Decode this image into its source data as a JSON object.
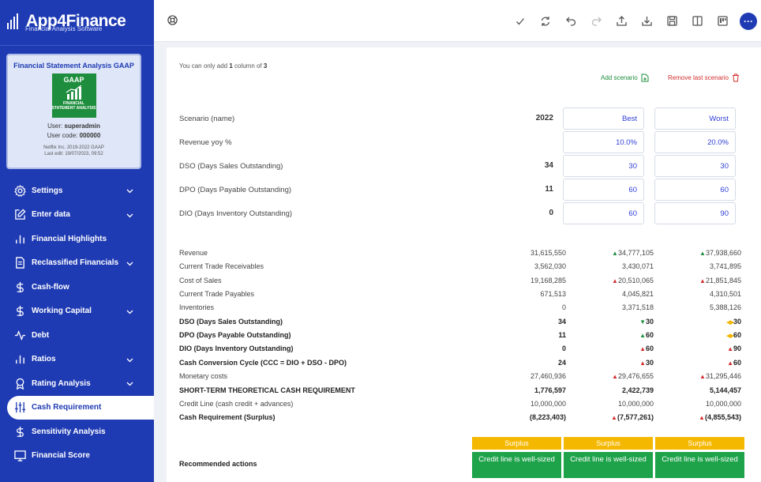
{
  "app": {
    "name": "App4Finance",
    "subtitle": "Financial Analysis Software"
  },
  "project_card": {
    "title": "Financial Statement Analysis GAAP",
    "badge_top": "GAAP",
    "badge_bottom": "FINANCIAL STATEMENT ANALYSIS",
    "user_label": "User:",
    "user": "superadmin",
    "user_code_label": "User code:",
    "user_code": "000000",
    "company": "Netflix Inc. 2019-2022 GAAP",
    "last_edit": "Last edit: 19/07/2023, 09:52"
  },
  "sidebar": {
    "items": [
      {
        "label": "Settings",
        "icon": "gear-icon",
        "has_chevron": true
      },
      {
        "label": "Enter data",
        "icon": "edit-icon",
        "has_chevron": true
      },
      {
        "label": "Financial Highlights",
        "icon": "bar-chart-icon",
        "has_chevron": false
      },
      {
        "label": "Reclassified Financials",
        "icon": "document-icon",
        "has_chevron": true
      },
      {
        "label": "Cash-flow",
        "icon": "dollar-icon",
        "has_chevron": false
      },
      {
        "label": "Working Capital",
        "icon": "dollar-icon",
        "has_chevron": true
      },
      {
        "label": "Debt",
        "icon": "pulse-icon",
        "has_chevron": false
      },
      {
        "label": "Ratios",
        "icon": "bar-chart-icon",
        "has_chevron": true
      },
      {
        "label": "Rating Analysis",
        "icon": "award-icon",
        "has_chevron": true
      },
      {
        "label": "Cash Requirement",
        "icon": "sliders-icon",
        "has_chevron": false,
        "active": true
      },
      {
        "label": "Sensitivity Analysis",
        "icon": "dollar-icon",
        "has_chevron": false
      },
      {
        "label": "Financial Score",
        "icon": "monitor-icon",
        "has_chevron": false
      }
    ]
  },
  "toolbar": {
    "icons": [
      "check-icon",
      "refresh-icon",
      "undo-icon",
      "redo-icon",
      "upload-icon",
      "download-icon",
      "save-icon",
      "columns-icon",
      "kanban-icon"
    ],
    "more": "···"
  },
  "main": {
    "note_prefix": "You can only add ",
    "note_count": "1",
    "note_mid": " column of ",
    "note_total": "3",
    "add_scenario": "Add scenario",
    "remove_scenario": "Remove last scenario",
    "inputs": [
      {
        "label": "Scenario (name)",
        "base": "2022",
        "best": "Best",
        "worst": "Worst"
      },
      {
        "label": "Revenue yoy %",
        "base": "",
        "best": "10.0%",
        "worst": "20.0%"
      },
      {
        "label": "DSO (Days Sales Outstanding)",
        "base": "34",
        "best": "30",
        "worst": "30"
      },
      {
        "label": "DPO (Days Payable Outstanding)",
        "base": "11",
        "best": "60",
        "worst": "60"
      },
      {
        "label": "DIO (Days Inventory Outstanding)",
        "base": "0",
        "best": "60",
        "worst": "90"
      }
    ],
    "rows": [
      {
        "label": "Revenue",
        "bold": false,
        "base": "31,615,550",
        "best": "34,777,105",
        "best_mark": "up-green",
        "worst": "37,938,660",
        "worst_mark": "up-green"
      },
      {
        "label": "Current Trade Receivables",
        "bold": false,
        "base": "3,562,030",
        "best": "3,430,071",
        "best_mark": "",
        "worst": "3,741,895",
        "worst_mark": ""
      },
      {
        "label": "Cost of Sales",
        "bold": false,
        "base": "19,168,285",
        "best": "20,510,065",
        "best_mark": "up-red",
        "worst": "21,851,845",
        "worst_mark": "up-red"
      },
      {
        "label": "Current Trade Payables",
        "bold": false,
        "base": "671,513",
        "best": "4,045,821",
        "best_mark": "",
        "worst": "4,310,501",
        "worst_mark": ""
      },
      {
        "label": "Inventories",
        "bold": false,
        "base": "0",
        "best": "3,371,518",
        "best_mark": "",
        "worst": "5,388,126",
        "worst_mark": ""
      },
      {
        "label": "DSO (Days Sales Outstanding)",
        "bold": true,
        "base": "34",
        "best": "30",
        "best_mark": "down-green",
        "worst": "30",
        "worst_mark": "leftright-yellow"
      },
      {
        "label": "DPO (Days Payable Outstanding)",
        "bold": true,
        "base": "11",
        "best": "60",
        "best_mark": "up-green",
        "worst": "60",
        "worst_mark": "leftright-yellow"
      },
      {
        "label": "DIO (Days Inventory Outstanding)",
        "bold": true,
        "base": "0",
        "best": "60",
        "best_mark": "up-red",
        "worst": "90",
        "worst_mark": "up-red"
      },
      {
        "label": "Cash Conversion Cycle (CCC = DIO + DSO - DPO)",
        "bold": true,
        "base": "24",
        "best": "30",
        "best_mark": "up-red",
        "worst": "60",
        "worst_mark": "up-red"
      },
      {
        "label": "Monetary costs",
        "bold": false,
        "base": "27,460,936",
        "best": "29,476,655",
        "best_mark": "up-red",
        "worst": "31,295,446",
        "worst_mark": "up-red"
      },
      {
        "label": "SHORT-TERM THEORETICAL CASH REQUIREMENT",
        "bold": true,
        "base": "1,776,597",
        "best": "2,422,739",
        "best_mark": "",
        "worst": "5,144,457",
        "worst_mark": ""
      },
      {
        "label": "Credit Line (cash credit + advances)",
        "bold": false,
        "base": "10,000,000",
        "best": "10,000,000",
        "best_mark": "",
        "worst": "10,000,000",
        "worst_mark": ""
      },
      {
        "label": "Cash Requirement (Surplus)",
        "bold": true,
        "base": "(8,223,403)",
        "best": "(7,577,261)",
        "best_mark": "up-red",
        "worst": "(4,855,543)",
        "worst_mark": "up-red"
      }
    ],
    "recommended_label": "Recommended actions",
    "recommendations": [
      {
        "status": "Surplus",
        "action": "Credit line is well-sized"
      },
      {
        "status": "Surplus",
        "action": "Credit line is well-sized"
      },
      {
        "status": "Surplus",
        "action": "Credit line is well-sized"
      }
    ]
  },
  "colors": {
    "brand": "#1f3bb3",
    "green": "#1e8e3e",
    "red": "#d32f2f",
    "yellow": "#f5b800"
  }
}
